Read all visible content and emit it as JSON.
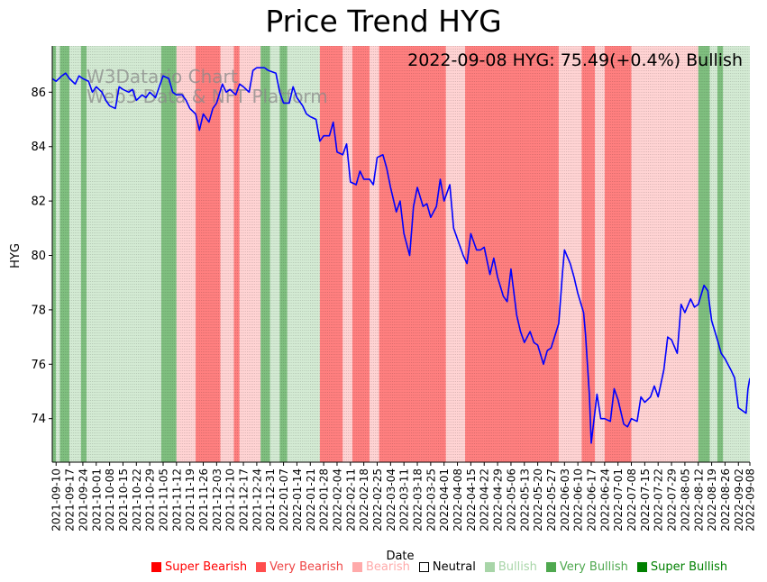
{
  "chart_data": {
    "type": "line",
    "title": "Price Trend HYG",
    "annotation": "2022-09-08 HYG: 75.49(+0.4%) Bullish",
    "watermark": [
      "W3Datario Chart",
      "Web3 Data & NFT Platform"
    ],
    "xlabel": "Date",
    "ylabel": "HYG",
    "ylim": [
      72.4,
      87.7
    ],
    "yticks": [
      74,
      76,
      78,
      80,
      82,
      84,
      86
    ],
    "x_range": [
      "2021-09-08",
      "2022-09-08"
    ],
    "xticks": [
      "2021-09-10",
      "2021-09-17",
      "2021-09-24",
      "2021-10-01",
      "2021-10-08",
      "2021-10-15",
      "2021-10-22",
      "2021-10-29",
      "2021-11-05",
      "2021-11-12",
      "2021-11-19",
      "2021-11-26",
      "2021-12-03",
      "2021-12-10",
      "2021-12-17",
      "2021-12-24",
      "2021-12-31",
      "2022-01-07",
      "2022-01-14",
      "2022-01-21",
      "2022-01-28",
      "2022-02-04",
      "2022-02-11",
      "2022-02-18",
      "2022-02-25",
      "2022-03-04",
      "2022-03-11",
      "2022-03-18",
      "2022-03-25",
      "2022-04-01",
      "2022-04-08",
      "2022-04-15",
      "2022-04-22",
      "2022-04-29",
      "2022-05-06",
      "2022-05-13",
      "2022-05-20",
      "2022-05-27",
      "2022-06-03",
      "2022-06-10",
      "2022-06-17",
      "2022-06-24",
      "2022-07-01",
      "2022-07-08",
      "2022-07-15",
      "2022-07-22",
      "2022-07-29",
      "2022-08-05",
      "2022-08-12",
      "2022-08-19",
      "2022-08-26",
      "2022-09-02",
      "2022-09-08"
    ],
    "series": [
      {
        "name": "HYG",
        "color": "#0000ff",
        "points": [
          [
            "2021-09-08",
            86.5
          ],
          [
            "2021-09-10",
            86.4
          ],
          [
            "2021-09-13",
            86.6
          ],
          [
            "2021-09-15",
            86.7
          ],
          [
            "2021-09-17",
            86.5
          ],
          [
            "2021-09-20",
            86.3
          ],
          [
            "2021-09-22",
            86.6
          ],
          [
            "2021-09-24",
            86.5
          ],
          [
            "2021-09-27",
            86.4
          ],
          [
            "2021-09-29",
            86.0
          ],
          [
            "2021-10-01",
            86.2
          ],
          [
            "2021-10-04",
            86.0
          ],
          [
            "2021-10-06",
            85.7
          ],
          [
            "2021-10-08",
            85.5
          ],
          [
            "2021-10-11",
            85.4
          ],
          [
            "2021-10-13",
            86.2
          ],
          [
            "2021-10-15",
            86.1
          ],
          [
            "2021-10-18",
            86.0
          ],
          [
            "2021-10-20",
            86.1
          ],
          [
            "2021-10-22",
            85.7
          ],
          [
            "2021-10-25",
            85.9
          ],
          [
            "2021-10-27",
            85.8
          ],
          [
            "2021-10-29",
            86.0
          ],
          [
            "2021-11-01",
            85.8
          ],
          [
            "2021-11-03",
            86.2
          ],
          [
            "2021-11-05",
            86.6
          ],
          [
            "2021-11-08",
            86.5
          ],
          [
            "2021-11-10",
            86.0
          ],
          [
            "2021-11-12",
            85.9
          ],
          [
            "2021-11-15",
            85.9
          ],
          [
            "2021-11-17",
            85.7
          ],
          [
            "2021-11-19",
            85.4
          ],
          [
            "2021-11-22",
            85.2
          ],
          [
            "2021-11-24",
            84.6
          ],
          [
            "2021-11-26",
            85.2
          ],
          [
            "2021-11-29",
            84.9
          ],
          [
            "2021-12-01",
            85.4
          ],
          [
            "2021-12-03",
            85.6
          ],
          [
            "2021-12-06",
            86.3
          ],
          [
            "2021-12-08",
            86.0
          ],
          [
            "2021-12-10",
            86.1
          ],
          [
            "2021-12-13",
            85.9
          ],
          [
            "2021-12-15",
            86.3
          ],
          [
            "2021-12-17",
            86.2
          ],
          [
            "2021-12-20",
            86.0
          ],
          [
            "2021-12-22",
            86.8
          ],
          [
            "2021-12-24",
            86.9
          ],
          [
            "2021-12-28",
            86.9
          ],
          [
            "2021-12-30",
            86.8
          ],
          [
            "2022-01-03",
            86.7
          ],
          [
            "2022-01-05",
            86.0
          ],
          [
            "2022-01-07",
            85.6
          ],
          [
            "2022-01-10",
            85.6
          ],
          [
            "2022-01-12",
            86.2
          ],
          [
            "2022-01-14",
            85.8
          ],
          [
            "2022-01-17",
            85.5
          ],
          [
            "2022-01-19",
            85.2
          ],
          [
            "2022-01-21",
            85.1
          ],
          [
            "2022-01-24",
            85.0
          ],
          [
            "2022-01-26",
            84.2
          ],
          [
            "2022-01-28",
            84.4
          ],
          [
            "2022-01-31",
            84.4
          ],
          [
            "2022-02-02",
            84.9
          ],
          [
            "2022-02-04",
            83.8
          ],
          [
            "2022-02-07",
            83.7
          ],
          [
            "2022-02-09",
            84.1
          ],
          [
            "2022-02-11",
            82.7
          ],
          [
            "2022-02-14",
            82.6
          ],
          [
            "2022-02-16",
            83.1
          ],
          [
            "2022-02-18",
            82.8
          ],
          [
            "2022-02-21",
            82.8
          ],
          [
            "2022-02-23",
            82.6
          ],
          [
            "2022-02-25",
            83.6
          ],
          [
            "2022-02-28",
            83.7
          ],
          [
            "2022-03-02",
            83.2
          ],
          [
            "2022-03-04",
            82.5
          ],
          [
            "2022-03-07",
            81.6
          ],
          [
            "2022-03-09",
            82.0
          ],
          [
            "2022-03-11",
            80.8
          ],
          [
            "2022-03-14",
            80.0
          ],
          [
            "2022-03-16",
            81.8
          ],
          [
            "2022-03-18",
            82.5
          ],
          [
            "2022-03-21",
            81.8
          ],
          [
            "2022-03-23",
            81.9
          ],
          [
            "2022-03-25",
            81.4
          ],
          [
            "2022-03-28",
            81.8
          ],
          [
            "2022-03-30",
            82.8
          ],
          [
            "2022-04-01",
            82.0
          ],
          [
            "2022-04-04",
            82.6
          ],
          [
            "2022-04-06",
            81.0
          ],
          [
            "2022-04-08",
            80.6
          ],
          [
            "2022-04-11",
            80.0
          ],
          [
            "2022-04-13",
            79.7
          ],
          [
            "2022-04-15",
            80.8
          ],
          [
            "2022-04-18",
            80.2
          ],
          [
            "2022-04-20",
            80.2
          ],
          [
            "2022-04-22",
            80.3
          ],
          [
            "2022-04-25",
            79.3
          ],
          [
            "2022-04-27",
            79.9
          ],
          [
            "2022-04-29",
            79.2
          ],
          [
            "2022-05-02",
            78.5
          ],
          [
            "2022-05-04",
            78.3
          ],
          [
            "2022-05-06",
            79.5
          ],
          [
            "2022-05-09",
            77.8
          ],
          [
            "2022-05-11",
            77.2
          ],
          [
            "2022-05-13",
            76.8
          ],
          [
            "2022-05-16",
            77.2
          ],
          [
            "2022-05-18",
            76.8
          ],
          [
            "2022-05-20",
            76.7
          ],
          [
            "2022-05-23",
            76.0
          ],
          [
            "2022-05-25",
            76.5
          ],
          [
            "2022-05-27",
            76.6
          ],
          [
            "2022-05-31",
            77.5
          ],
          [
            "2022-06-02",
            79.4
          ],
          [
            "2022-06-03",
            80.2
          ],
          [
            "2022-06-06",
            79.7
          ],
          [
            "2022-06-08",
            79.2
          ],
          [
            "2022-06-10",
            78.6
          ],
          [
            "2022-06-13",
            77.9
          ],
          [
            "2022-06-14",
            77.1
          ],
          [
            "2022-06-16",
            74.9
          ],
          [
            "2022-06-17",
            73.1
          ],
          [
            "2022-06-20",
            74.9
          ],
          [
            "2022-06-22",
            74.0
          ],
          [
            "2022-06-24",
            74.0
          ],
          [
            "2022-06-27",
            73.9
          ],
          [
            "2022-06-29",
            75.1
          ],
          [
            "2022-07-01",
            74.7
          ],
          [
            "2022-07-04",
            73.8
          ],
          [
            "2022-07-06",
            73.7
          ],
          [
            "2022-07-08",
            74.0
          ],
          [
            "2022-07-11",
            73.9
          ],
          [
            "2022-07-13",
            74.8
          ],
          [
            "2022-07-15",
            74.6
          ],
          [
            "2022-07-18",
            74.8
          ],
          [
            "2022-07-20",
            75.2
          ],
          [
            "2022-07-22",
            74.8
          ],
          [
            "2022-07-25",
            75.8
          ],
          [
            "2022-07-27",
            77.0
          ],
          [
            "2022-07-29",
            76.9
          ],
          [
            "2022-08-01",
            76.4
          ],
          [
            "2022-08-03",
            78.2
          ],
          [
            "2022-08-05",
            77.9
          ],
          [
            "2022-08-08",
            78.4
          ],
          [
            "2022-08-10",
            78.1
          ],
          [
            "2022-08-12",
            78.2
          ],
          [
            "2022-08-15",
            78.9
          ],
          [
            "2022-08-17",
            78.7
          ],
          [
            "2022-08-19",
            77.6
          ],
          [
            "2022-08-22",
            76.9
          ],
          [
            "2022-08-24",
            76.4
          ],
          [
            "2022-08-26",
            76.2
          ],
          [
            "2022-08-29",
            75.8
          ],
          [
            "2022-08-31",
            75.5
          ],
          [
            "2022-09-02",
            74.4
          ],
          [
            "2022-09-06",
            74.2
          ],
          [
            "2022-09-07",
            75.1
          ],
          [
            "2022-09-08",
            75.49
          ]
        ]
      }
    ],
    "regime_bands": [
      [
        "2021-09-08",
        "2021-09-10",
        "very_bullish"
      ],
      [
        "2021-09-10",
        "2021-09-12",
        "bullish"
      ],
      [
        "2021-09-12",
        "2021-09-17",
        "very_bullish"
      ],
      [
        "2021-09-17",
        "2021-09-23",
        "bullish"
      ],
      [
        "2021-09-23",
        "2021-09-26",
        "very_bullish"
      ],
      [
        "2021-09-26",
        "2021-11-04",
        "bullish"
      ],
      [
        "2021-11-04",
        "2021-11-12",
        "very_bullish"
      ],
      [
        "2021-11-12",
        "2021-11-22",
        "bearish"
      ],
      [
        "2021-11-22",
        "2021-12-05",
        "very_bearish"
      ],
      [
        "2021-12-05",
        "2021-12-12",
        "bearish"
      ],
      [
        "2021-12-12",
        "2021-12-15",
        "very_bearish"
      ],
      [
        "2021-12-15",
        "2021-12-26",
        "bearish"
      ],
      [
        "2021-12-26",
        "2021-12-31",
        "very_bullish"
      ],
      [
        "2021-12-31",
        "2022-01-05",
        "bullish"
      ],
      [
        "2022-01-05",
        "2022-01-09",
        "very_bullish"
      ],
      [
        "2022-01-09",
        "2022-01-26",
        "bullish"
      ],
      [
        "2022-01-26",
        "2022-02-07",
        "very_bearish"
      ],
      [
        "2022-02-07",
        "2022-02-12",
        "bearish"
      ],
      [
        "2022-02-12",
        "2022-02-21",
        "very_bearish"
      ],
      [
        "2022-02-21",
        "2022-02-26",
        "bearish"
      ],
      [
        "2022-02-26",
        "2022-04-02",
        "very_bearish"
      ],
      [
        "2022-04-02",
        "2022-04-12",
        "bearish"
      ],
      [
        "2022-04-12",
        "2022-05-31",
        "very_bearish"
      ],
      [
        "2022-05-31",
        "2022-06-12",
        "bearish"
      ],
      [
        "2022-06-12",
        "2022-06-19",
        "very_bearish"
      ],
      [
        "2022-06-19",
        "2022-06-24",
        "bearish"
      ],
      [
        "2022-06-24",
        "2022-07-08",
        "very_bearish"
      ],
      [
        "2022-07-08",
        "2022-08-12",
        "bearish"
      ],
      [
        "2022-08-12",
        "2022-08-18",
        "very_bullish"
      ],
      [
        "2022-08-18",
        "2022-08-22",
        "bullish"
      ],
      [
        "2022-08-22",
        "2022-08-25",
        "very_bullish"
      ],
      [
        "2022-08-25",
        "2022-09-08",
        "bullish"
      ]
    ],
    "legend": [
      {
        "label": "Super Bearish",
        "color": "#ff0000",
        "text_color": "#ff0000"
      },
      {
        "label": "Very Bearish",
        "color": "#ff4d4d",
        "text_color": "#ee4444"
      },
      {
        "label": "Bearish",
        "color": "#ffaaaa",
        "text_color": "#ffaaaa"
      },
      {
        "label": "Neutral",
        "color": "#ffffff",
        "text_color": "#000000"
      },
      {
        "label": "Bullish",
        "color": "#a8d5a8",
        "text_color": "#a8d5a8"
      },
      {
        "label": "Very Bullish",
        "color": "#4fa84f",
        "text_color": "#4fa84f"
      },
      {
        "label": "Super Bullish",
        "color": "#008000",
        "text_color": "#008000"
      }
    ],
    "regime_colors": {
      "bearish": "#ffd3d3",
      "very_bearish": "#ff7f7f",
      "bullish": "#d3ead3",
      "very_bullish": "#7fbf7f"
    }
  }
}
